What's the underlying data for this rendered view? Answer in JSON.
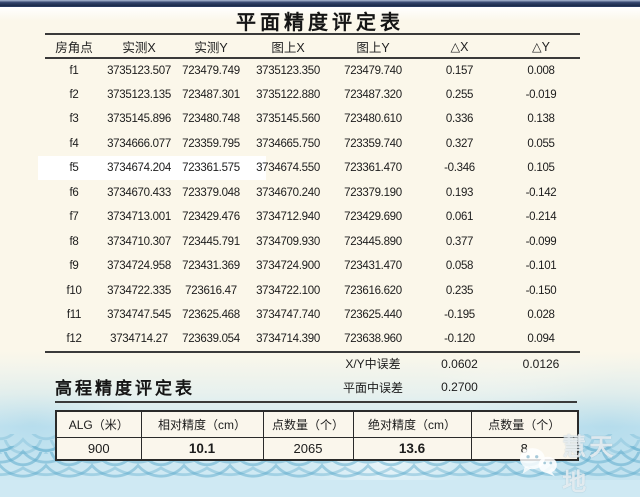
{
  "plane_table": {
    "title": "平面精度评定表",
    "columns": [
      "房角点",
      "实测X",
      "实测Y",
      "图上X",
      "图上Y",
      "△X",
      "△Y"
    ],
    "rows": [
      [
        "f1",
        "3735123.507",
        "723479.749",
        "3735123.350",
        "723479.740",
        "0.157",
        "0.008"
      ],
      [
        "f2",
        "3735123.135",
        "723487.301",
        "3735122.880",
        "723487.320",
        "0.255",
        "-0.019"
      ],
      [
        "f3",
        "3735145.896",
        "723480.748",
        "3735145.560",
        "723480.610",
        "0.336",
        "0.138"
      ],
      [
        "f4",
        "3734666.077",
        "723359.795",
        "3734665.750",
        "723359.740",
        "0.327",
        "0.055"
      ],
      [
        "f5",
        "3734674.204",
        "723361.575",
        "3734674.550",
        "723361.470",
        "-0.346",
        "0.105"
      ],
      [
        "f6",
        "3734670.433",
        "723379.048",
        "3734670.240",
        "723379.190",
        "0.193",
        "-0.142"
      ],
      [
        "f7",
        "3734713.001",
        "723429.476",
        "3734712.940",
        "723429.690",
        "0.061",
        "-0.214"
      ],
      [
        "f8",
        "3734710.307",
        "723445.791",
        "3734709.930",
        "723445.890",
        "0.377",
        "-0.099"
      ],
      [
        "f9",
        "3734724.958",
        "723431.369",
        "3734724.900",
        "723431.470",
        "0.058",
        "-0.101"
      ],
      [
        "f10",
        "3734722.335",
        "723616.47",
        "3734722.100",
        "723616.620",
        "0.235",
        "-0.150"
      ],
      [
        "f11",
        "3734747.545",
        "723625.468",
        "3734747.740",
        "723625.440",
        "-0.195",
        "0.028"
      ],
      [
        "f12",
        "3734714.27",
        "723639.054",
        "3734714.390",
        "723638.960",
        "-0.120",
        "0.094"
      ]
    ],
    "highlight_row": "f5",
    "summary": {
      "xy_label": "X/Y中误差",
      "xy_dx": "0.0602",
      "xy_dy": "0.0126",
      "plane_label": "平面中误差",
      "plane_value": "0.2700"
    }
  },
  "elevation_table": {
    "title": "高程精度评定表",
    "columns": [
      "ALG（米）",
      "相对精度（cm）",
      "点数量（个）",
      "绝对精度（cm）",
      "点数量（个）"
    ],
    "values": [
      "900",
      "10.1",
      "2065",
      "13.6",
      "8"
    ],
    "red_flags": [
      false,
      true,
      false,
      true,
      false
    ]
  },
  "watermark": {
    "brand": "慧天地",
    "icon": "wechat-chat-bubbles-icon"
  },
  "colors": {
    "accent_red": "#c42222",
    "panel_cream": "#fbf7ea",
    "wave_blue": "#cfe9f3",
    "topbar_navy": "#1b2a4a"
  }
}
